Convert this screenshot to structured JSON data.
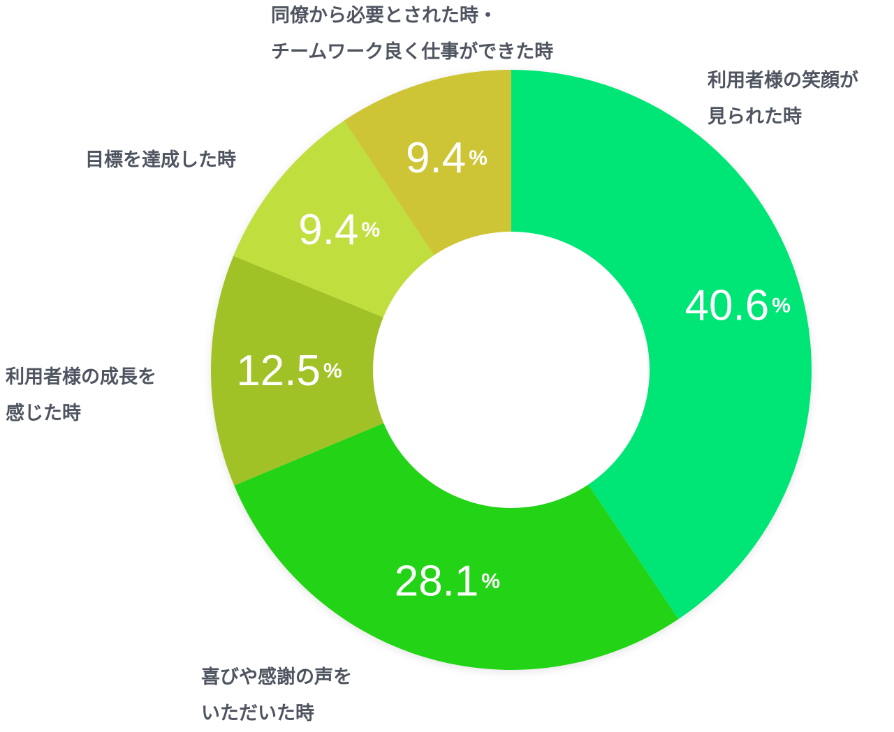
{
  "chart_data": {
    "type": "pie",
    "donut": true,
    "start": "12 o'clock",
    "direction": "clockwise",
    "categories": [
      [
        "利用者様の笑顔が",
        "見られた時"
      ],
      [
        "喜びや感謝の声を",
        "いただいた時"
      ],
      [
        "利用者様の成長を",
        "感じた時"
      ],
      [
        "目標を達成した時"
      ],
      [
        "同僚から必要とされた時・",
        "チームワーク良く仕事ができた時"
      ]
    ],
    "values": [
      40.6,
      28.1,
      12.5,
      9.4,
      9.4
    ],
    "value_labels": [
      "40.6",
      "28.1",
      "12.5",
      "9.4",
      "9.4"
    ],
    "unit": "%",
    "colors": [
      "#00e676",
      "#24d314",
      "#a0c228",
      "#c0de3c",
      "#cdc535"
    ],
    "label_color": "#4f5560"
  }
}
